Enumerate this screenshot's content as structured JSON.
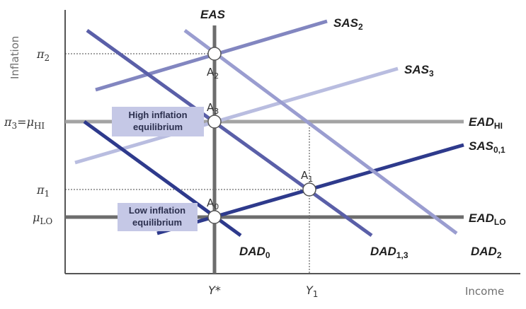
{
  "axes": {
    "y_title": "Inflation",
    "x_title": "Income",
    "y_ticks": [
      {
        "base": "π",
        "sub": "2"
      },
      {
        "base": "π",
        "sub": "3",
        "eq": "=",
        "base2": "μ",
        "sub2": "HI"
      },
      {
        "base": "π",
        "sub": "1"
      },
      {
        "base": "μ",
        "sub": "LO"
      }
    ],
    "x_ticks": [
      {
        "base": "Y*",
        "sub": ""
      },
      {
        "base": "Y",
        "sub": "1"
      }
    ]
  },
  "curves": {
    "eas": {
      "base": "EAS",
      "sub": ""
    },
    "sas2": {
      "base": "SAS",
      "sub": "2"
    },
    "sas3": {
      "base": "SAS",
      "sub": "3"
    },
    "ead_hi": {
      "base": "EAD",
      "sub": "HI"
    },
    "sas01": {
      "base": "SAS",
      "sub": "0,1"
    },
    "ead_lo": {
      "base": "EAD",
      "sub": "LO"
    },
    "dad0": {
      "base": "DAD",
      "sub": "0"
    },
    "dad13": {
      "base": "DAD",
      "sub": "1,3"
    },
    "dad2": {
      "base": "DAD",
      "sub": "2"
    }
  },
  "points": {
    "a2": {
      "base": "A",
      "sub": "2"
    },
    "a3": {
      "base": "A",
      "sub": "3"
    },
    "a1": {
      "base": "A",
      "sub": "1"
    },
    "a0": {
      "base": "A",
      "sub": "0"
    }
  },
  "boxes": {
    "high": {
      "line1": "High inflation",
      "line2": "equilibrium"
    },
    "low": {
      "line1": "Low inflation",
      "line2": "equilibrium"
    }
  },
  "colors": {
    "axis": "#555555",
    "eas": "#6d6d6d",
    "ead": "#8c8c8c",
    "sas01": "#2e3a8c",
    "sas2": "#8286c0",
    "sas3": "#b9bde0",
    "dad0": "#2e3a8c",
    "dad13": "#5a5fa8",
    "dad2": "#9a9dd0",
    "box_fill": "#c5c8e6"
  }
}
